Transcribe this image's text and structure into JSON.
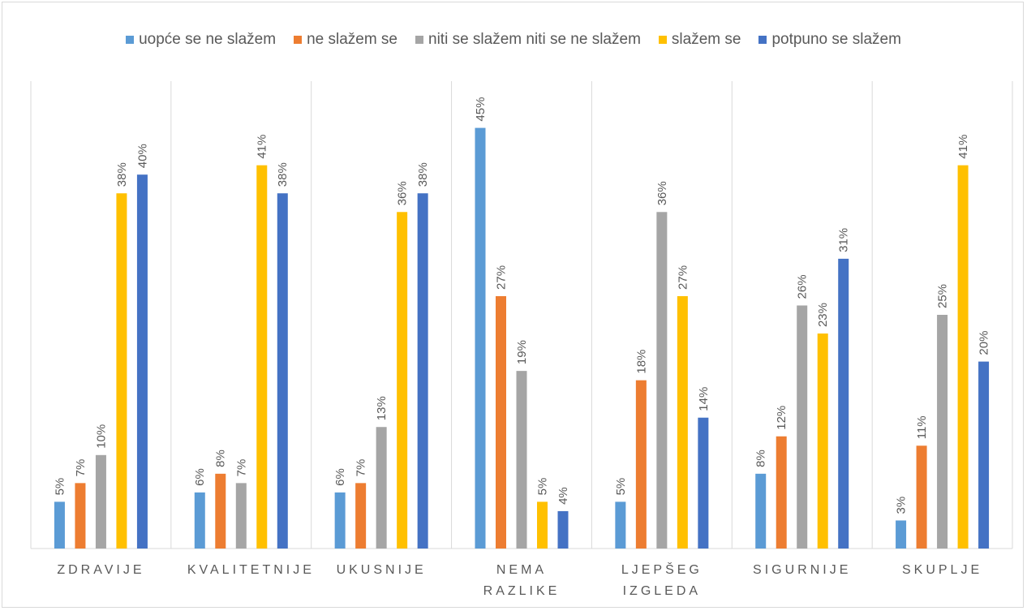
{
  "chart_data": {
    "type": "bar",
    "categories": [
      "ZDRAVIJE",
      "KVALITETNIJE",
      "UKUSNIJE",
      "NEMA RAZLIKE",
      "LJEPŠEG IZGLEDA",
      "SIGURNIJE",
      "SKUPLJE"
    ],
    "ylim": [
      0,
      50
    ],
    "legend": "top",
    "grid": true,
    "series": [
      {
        "name": "uopće se ne slažem",
        "color": "#5b9bd5",
        "values": [
          5,
          6,
          6,
          45,
          5,
          8,
          3
        ],
        "value_labels": [
          "5%",
          "6%",
          "6%",
          "45%",
          "5%",
          "8%",
          "3%"
        ]
      },
      {
        "name": "ne slažem se",
        "color": "#ed7d31",
        "values": [
          7,
          8,
          7,
          27,
          18,
          12,
          11
        ],
        "value_labels": [
          "7%",
          "8%",
          "7%",
          "27%",
          "18%",
          "12%",
          "11%"
        ]
      },
      {
        "name": "niti se slažem niti se ne slažem",
        "color": "#a5a5a5",
        "values": [
          10,
          7,
          13,
          19,
          36,
          26,
          25
        ],
        "value_labels": [
          "10%",
          "7%",
          "13%",
          "19%",
          "36%",
          "26%",
          "25%"
        ]
      },
      {
        "name": "slažem se",
        "color": "#ffc000",
        "values": [
          38,
          41,
          36,
          5,
          27,
          23,
          41
        ],
        "value_labels": [
          "38%",
          "41%",
          "36%",
          "5%",
          "27%",
          "23%",
          "41%"
        ]
      },
      {
        "name": "potpuno se slažem",
        "color": "#4472c4",
        "values": [
          40,
          38,
          38,
          4,
          14,
          31,
          20
        ],
        "value_labels": [
          "40%",
          "38%",
          "38%",
          "4%",
          "14%",
          "31%",
          "20%"
        ]
      }
    ]
  }
}
